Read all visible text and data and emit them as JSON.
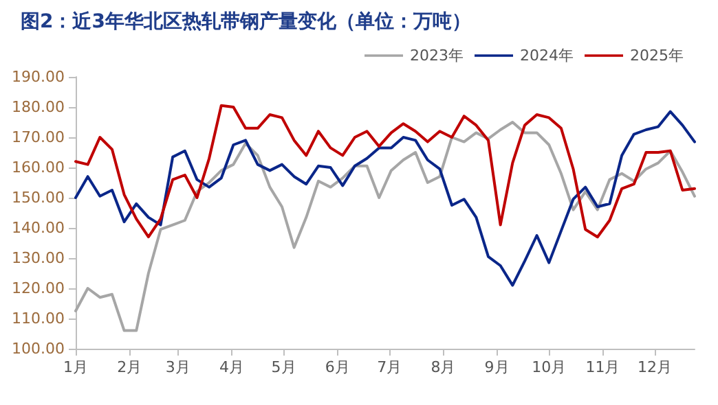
{
  "chart_data": {
    "type": "line",
    "title": "图2：近3年华北区热轧带钢产量变化（单位：万吨）",
    "x": [
      "--01-01",
      "--01-08",
      "--01-15",
      "--01-22",
      "--01-29",
      "--02-05",
      "--02-12",
      "--02-19",
      "--02-26",
      "--03-05",
      "--03-12",
      "--03-19",
      "--03-26",
      "--04-02",
      "--04-09",
      "--04-16",
      "--04-23",
      "--04-30",
      "--05-07",
      "--05-14",
      "--05-21",
      "--05-28",
      "--06-04",
      "--06-11",
      "--06-18",
      "--06-25",
      "--07-02",
      "--07-09",
      "--07-16",
      "--07-23",
      "--07-30",
      "--08-06",
      "--08-13",
      "--08-20",
      "--08-27",
      "--09-03",
      "--09-10",
      "--09-17",
      "--09-24",
      "--10-01",
      "--10-08",
      "--10-15",
      "--10-22",
      "--10-29",
      "--11-05",
      "--11-12",
      "--11-19",
      "--11-26",
      "--12-03",
      "--12-10",
      "--12-17",
      "--12-24"
    ],
    "xlim": [
      "--01-01",
      "--12-24"
    ],
    "xticks": [
      {
        "value": "--01-01",
        "label": "1月"
      },
      {
        "value": "--02-01",
        "label": "2月"
      },
      {
        "value": "--03-01",
        "label": "3月"
      },
      {
        "value": "--04-01",
        "label": "4月"
      },
      {
        "value": "--05-01",
        "label": "5月"
      },
      {
        "value": "--06-01",
        "label": "6月"
      },
      {
        "value": "--07-01",
        "label": "7月"
      },
      {
        "value": "--08-01",
        "label": "8月"
      },
      {
        "value": "--09-01",
        "label": "9月"
      },
      {
        "value": "--10-01",
        "label": "10月"
      },
      {
        "value": "--11-01",
        "label": "11月"
      },
      {
        "value": "--12-01",
        "label": "12月"
      }
    ],
    "ylim": [
      100,
      190
    ],
    "yticks": [
      {
        "value": 100,
        "label": "100.00"
      },
      {
        "value": 110,
        "label": "110.00"
      },
      {
        "value": 120,
        "label": "120.00"
      },
      {
        "value": 130,
        "label": "130.00"
      },
      {
        "value": 140,
        "label": "140.00"
      },
      {
        "value": 150,
        "label": "150.00"
      },
      {
        "value": 160,
        "label": "160.00"
      },
      {
        "value": 170,
        "label": "170.00"
      },
      {
        "value": 180,
        "label": "180.00"
      },
      {
        "value": 190,
        "label": "190.00"
      }
    ],
    "grid": false,
    "legend": "top right",
    "marker": "none",
    "line_style": "solid",
    "series": [
      {
        "name": "2023年",
        "color": "#a6a6a6",
        "values": [
          112.5,
          120,
          117,
          118,
          106,
          106,
          125,
          139.5,
          141,
          142.5,
          152,
          155,
          159,
          161,
          168,
          164,
          153.5,
          147,
          133.5,
          143.5,
          155.5,
          153.5,
          156.5,
          160.5,
          160.5,
          150,
          159,
          162.5,
          165,
          155,
          157,
          170,
          168.5,
          171.5,
          169.5,
          172.5,
          175,
          171.5,
          171.5,
          167.5,
          158,
          146,
          152,
          146,
          156,
          158,
          155.5,
          159.5,
          161.5,
          165.5,
          158.5,
          150.5
        ]
      },
      {
        "name": "2024年",
        "color": "#0a2689",
        "values": [
          150,
          157,
          150.5,
          152.5,
          142,
          148,
          143.5,
          141,
          163.5,
          165.5,
          156,
          153.5,
          156.5,
          167.5,
          169,
          161,
          159,
          161,
          157,
          154.5,
          160.5,
          160,
          154,
          160.5,
          163,
          166.5,
          166.5,
          170,
          169,
          162.5,
          159.5,
          147.5,
          149.5,
          143.5,
          130.5,
          127.5,
          121,
          129,
          137.5,
          128.5,
          139,
          149.5,
          153.5,
          147,
          148,
          164,
          171,
          172.5,
          173.5,
          178.5,
          174,
          168.5
        ]
      },
      {
        "name": "2025年",
        "color": "#c00000",
        "values": [
          162,
          161,
          170,
          166,
          151,
          143,
          137,
          143,
          156,
          157.5,
          150,
          163,
          180.5,
          180,
          173,
          173,
          177.5,
          176.5,
          169,
          164,
          172,
          166.5,
          164,
          170,
          172,
          167,
          171.5,
          174.5,
          172,
          168.5,
          172,
          170,
          177,
          174,
          169,
          141,
          161.5,
          174,
          177.5,
          176.5,
          173,
          159.5,
          139.5,
          137,
          142.5,
          153,
          154.5,
          165,
          165,
          165.5,
          152.5,
          153
        ]
      }
    ]
  }
}
